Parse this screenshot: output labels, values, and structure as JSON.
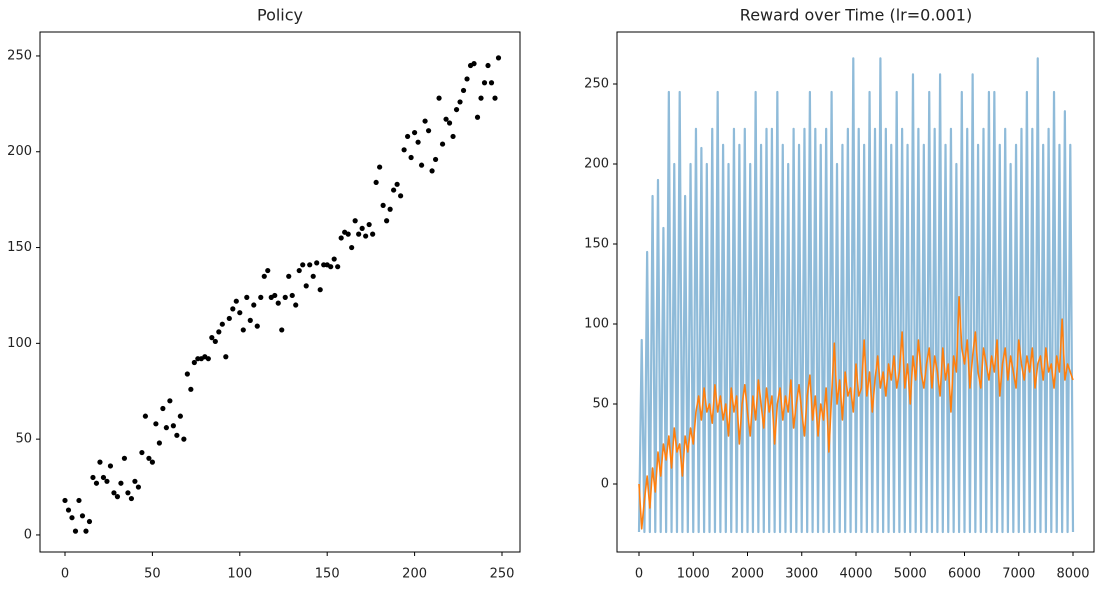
{
  "chart_data": [
    {
      "type": "scatter",
      "title": "Policy",
      "color": "#000000",
      "x": [
        0,
        2,
        4,
        6,
        8,
        10,
        12,
        14,
        16,
        18,
        20,
        22,
        24,
        26,
        28,
        30,
        32,
        34,
        36,
        38,
        40,
        42,
        44,
        46,
        48,
        50,
        52,
        54,
        56,
        58,
        60,
        62,
        64,
        66,
        68,
        70,
        72,
        74,
        76,
        78,
        80,
        82,
        84,
        86,
        88,
        90,
        92,
        94,
        96,
        98,
        100,
        102,
        104,
        106,
        108,
        110,
        112,
        114,
        116,
        118,
        120,
        122,
        124,
        126,
        128,
        130,
        132,
        134,
        136,
        138,
        140,
        142,
        144,
        146,
        148,
        150,
        152,
        154,
        156,
        158,
        160,
        162,
        164,
        166,
        168,
        170,
        172,
        174,
        176,
        178,
        180,
        182,
        184,
        186,
        188,
        190,
        192,
        194,
        196,
        198,
        200,
        202,
        204,
        206,
        208,
        210,
        212,
        214,
        216,
        218,
        220,
        222,
        224,
        226,
        228,
        230,
        232,
        234,
        236,
        238,
        240,
        242,
        244,
        246,
        248
      ],
      "values": [
        18,
        13,
        9,
        2,
        18,
        10,
        2,
        7,
        30,
        27,
        38,
        30,
        28,
        36,
        22,
        20,
        27,
        40,
        22,
        19,
        28,
        25,
        43,
        62,
        40,
        38,
        58,
        48,
        66,
        56,
        70,
        57,
        52,
        62,
        50,
        84,
        76,
        90,
        92,
        92,
        93,
        92,
        103,
        101,
        106,
        110,
        93,
        113,
        118,
        122,
        116,
        107,
        124,
        112,
        120,
        109,
        124,
        135,
        138,
        124,
        125,
        121,
        107,
        124,
        135,
        125,
        120,
        138,
        141,
        130,
        141,
        135,
        142,
        128,
        141,
        141,
        140,
        144,
        140,
        155,
        158,
        157,
        150,
        164,
        157,
        160,
        156,
        162,
        157,
        184,
        192,
        172,
        164,
        170,
        180,
        183,
        177,
        201,
        208,
        197,
        210,
        205,
        193,
        216,
        211,
        190,
        196,
        228,
        204,
        217,
        215,
        208,
        222,
        226,
        232,
        238,
        245,
        246,
        218,
        228,
        236,
        245,
        236,
        228,
        249
      ],
      "xlim": [
        -14.3,
        260.3
      ],
      "ylim": [
        -8.9,
        262.5
      ],
      "xticks": [
        0,
        50,
        100,
        150,
        200,
        250
      ],
      "yticks": [
        0,
        50,
        100,
        150,
        200,
        250
      ]
    },
    {
      "type": "line",
      "title": "Reward over Time (lr=0.001)",
      "x": [
        0,
        50,
        100,
        150,
        200,
        250,
        300,
        350,
        400,
        450,
        500,
        550,
        600,
        650,
        700,
        750,
        800,
        850,
        900,
        950,
        1000,
        1050,
        1100,
        1150,
        1200,
        1250,
        1300,
        1350,
        1400,
        1450,
        1500,
        1550,
        1600,
        1650,
        1700,
        1750,
        1800,
        1850,
        1900,
        1950,
        2000,
        2050,
        2100,
        2150,
        2200,
        2250,
        2300,
        2350,
        2400,
        2450,
        2500,
        2550,
        2600,
        2650,
        2700,
        2750,
        2800,
        2850,
        2900,
        2950,
        3000,
        3050,
        3100,
        3150,
        3200,
        3250,
        3300,
        3350,
        3400,
        3450,
        3500,
        3550,
        3600,
        3650,
        3700,
        3750,
        3800,
        3850,
        3900,
        3950,
        4000,
        4050,
        4100,
        4150,
        4200,
        4250,
        4300,
        4350,
        4400,
        4450,
        4500,
        4550,
        4600,
        4650,
        4700,
        4750,
        4800,
        4850,
        4900,
        4950,
        5000,
        5050,
        5100,
        5150,
        5200,
        5250,
        5300,
        5350,
        5400,
        5450,
        5500,
        5550,
        5600,
        5650,
        5700,
        5750,
        5800,
        5850,
        5900,
        5950,
        6000,
        6050,
        6100,
        6150,
        6200,
        6250,
        6300,
        6350,
        6400,
        6450,
        6500,
        6550,
        6600,
        6650,
        6700,
        6750,
        6800,
        6850,
        6900,
        6950,
        7000,
        7050,
        7100,
        7150,
        7200,
        7250,
        7300,
        7350,
        7400,
        7450,
        7500,
        7550,
        7600,
        7650,
        7700,
        7750,
        7800,
        7850,
        7900,
        7950,
        8000
      ],
      "series": [
        {
          "color": "#8fbbd9",
          "values": [
            -30,
            90,
            -30,
            145,
            -30,
            180,
            -30,
            190,
            -30,
            160,
            -30,
            245,
            -30,
            200,
            -30,
            245,
            -30,
            180,
            -30,
            200,
            -30,
            222,
            -30,
            210,
            -30,
            200,
            -30,
            222,
            -30,
            245,
            -30,
            212,
            -30,
            200,
            -30,
            222,
            -30,
            212,
            -30,
            222,
            -30,
            200,
            -30,
            245,
            -30,
            212,
            -30,
            222,
            -30,
            222,
            -30,
            245,
            -30,
            212,
            -30,
            200,
            -30,
            222,
            -30,
            212,
            -30,
            222,
            -30,
            245,
            -30,
            222,
            -30,
            212,
            -30,
            222,
            -30,
            245,
            -30,
            200,
            -30,
            212,
            -30,
            222,
            -30,
            266,
            -30,
            222,
            -30,
            212,
            -30,
            245,
            -30,
            222,
            -30,
            266,
            -30,
            222,
            -30,
            212,
            -30,
            245,
            -30,
            222,
            -30,
            212,
            -30,
            256,
            -30,
            222,
            -30,
            212,
            -30,
            245,
            -30,
            222,
            -30,
            256,
            -30,
            212,
            -30,
            222,
            -30,
            200,
            -30,
            245,
            -30,
            222,
            -30,
            256,
            -30,
            212,
            -30,
            222,
            -30,
            245,
            -30,
            245,
            -30,
            212,
            -30,
            222,
            -30,
            200,
            -30,
            212,
            -30,
            222,
            -30,
            245,
            -30,
            222,
            -30,
            266,
            -30,
            212,
            -30,
            222,
            -30,
            245,
            -30,
            212,
            -30,
            233,
            -30,
            212,
            -30
          ]
        },
        {
          "color": "#ff7f0e",
          "values": [
            0,
            -28,
            -10,
            5,
            -15,
            10,
            -5,
            20,
            5,
            25,
            15,
            30,
            10,
            35,
            20,
            25,
            5,
            30,
            20,
            35,
            25,
            45,
            55,
            40,
            60,
            45,
            50,
            38,
            62,
            45,
            55,
            40,
            50,
            30,
            60,
            45,
            55,
            25,
            50,
            62,
            45,
            30,
            55,
            40,
            65,
            50,
            35,
            60,
            45,
            55,
            25,
            50,
            60,
            40,
            55,
            45,
            65,
            35,
            50,
            62,
            45,
            30,
            55,
            68,
            40,
            55,
            30,
            50,
            40,
            60,
            20,
            55,
            88,
            50,
            65,
            40,
            70,
            55,
            60,
            45,
            75,
            55,
            60,
            90,
            55,
            70,
            45,
            65,
            80,
            60,
            70,
            55,
            75,
            65,
            80,
            60,
            70,
            95,
            60,
            75,
            50,
            80,
            65,
            90,
            70,
            60,
            75,
            85,
            60,
            80,
            70,
            55,
            85,
            65,
            75,
            45,
            80,
            70,
            117,
            85,
            75,
            90,
            60,
            80,
            95,
            70,
            60,
            85,
            75,
            65,
            80,
            70,
            90,
            55,
            75,
            85,
            65,
            80,
            70,
            60,
            90,
            75,
            65,
            80,
            70,
            85,
            60,
            75,
            80,
            65,
            85,
            70,
            75,
            60,
            80,
            70,
            103,
            65,
            75,
            70,
            65
          ]
        }
      ],
      "xlim": [
        -405.5,
        8387
      ],
      "ylim": [
        -42.5,
        282.5
      ],
      "xticks": [
        0,
        1000,
        2000,
        3000,
        4000,
        5000,
        6000,
        7000,
        8000
      ],
      "yticks": [
        0,
        50,
        100,
        150,
        200,
        250
      ]
    }
  ]
}
